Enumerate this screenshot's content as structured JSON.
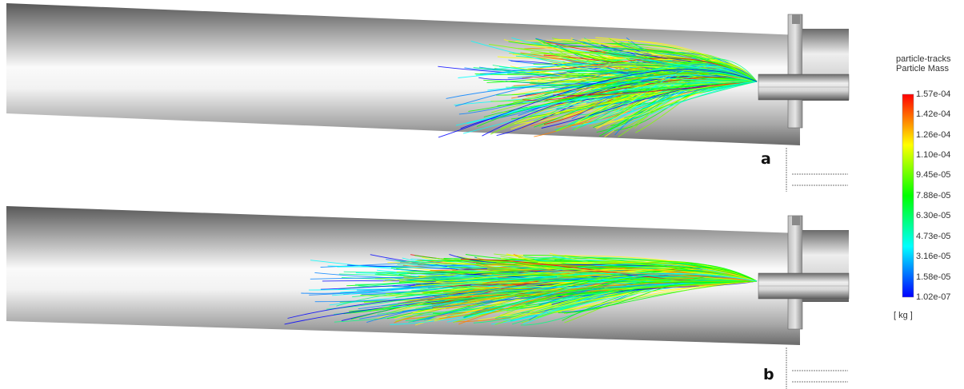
{
  "panels": [
    {
      "letter": "a"
    },
    {
      "letter": "b"
    }
  ],
  "legend": {
    "title_line1": "particle-tracks",
    "title_line2": "Particle Mass",
    "ticks": [
      "1.57e-04",
      "1.42e-04",
      "1.26e-04",
      "1.10e-04",
      "9.45e-05",
      "7.88e-05",
      "6.30e-05",
      "4.73e-05",
      "3.16e-05",
      "1.58e-05",
      "1.02e-07"
    ],
    "unit": "[ kg ]",
    "colormap": [
      "#0000ff",
      "#0080ff",
      "#00ffff",
      "#00ff80",
      "#00ff00",
      "#80ff00",
      "#ffff00",
      "#ff8000",
      "#ff0000"
    ]
  }
}
